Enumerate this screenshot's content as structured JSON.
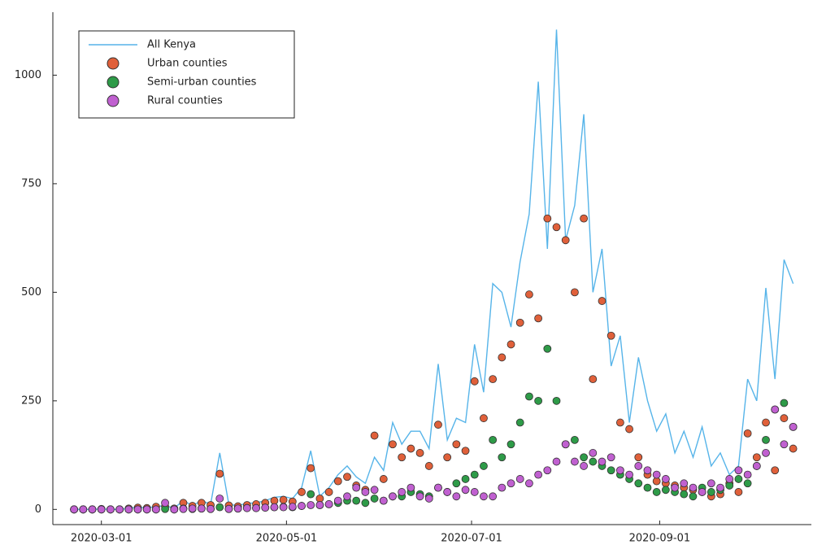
{
  "chart_data": {
    "type": "line-scatter",
    "x": [
      "2020-02-21",
      "2020-02-24",
      "2020-02-27",
      "2020-03-01",
      "2020-03-04",
      "2020-03-07",
      "2020-03-10",
      "2020-03-13",
      "2020-03-16",
      "2020-03-19",
      "2020-03-22",
      "2020-03-25",
      "2020-03-28",
      "2020-03-31",
      "2020-04-03",
      "2020-04-06",
      "2020-04-09",
      "2020-04-12",
      "2020-04-15",
      "2020-04-18",
      "2020-04-21",
      "2020-04-24",
      "2020-04-27",
      "2020-04-30",
      "2020-05-03",
      "2020-05-06",
      "2020-05-09",
      "2020-05-12",
      "2020-05-15",
      "2020-05-18",
      "2020-05-21",
      "2020-05-24",
      "2020-05-27",
      "2020-05-30",
      "2020-06-02",
      "2020-06-05",
      "2020-06-08",
      "2020-06-11",
      "2020-06-14",
      "2020-06-17",
      "2020-06-20",
      "2020-06-23",
      "2020-06-26",
      "2020-06-29",
      "2020-07-02",
      "2020-07-05",
      "2020-07-08",
      "2020-07-11",
      "2020-07-14",
      "2020-07-17",
      "2020-07-20",
      "2020-07-23",
      "2020-07-26",
      "2020-07-29",
      "2020-08-01",
      "2020-08-04",
      "2020-08-07",
      "2020-08-10",
      "2020-08-13",
      "2020-08-16",
      "2020-08-19",
      "2020-08-22",
      "2020-08-25",
      "2020-08-28",
      "2020-08-31",
      "2020-09-03",
      "2020-09-06",
      "2020-09-09",
      "2020-09-12",
      "2020-09-15",
      "2020-09-18",
      "2020-09-21",
      "2020-09-24",
      "2020-09-27",
      "2020-09-30",
      "2020-10-03",
      "2020-10-06",
      "2020-10-09",
      "2020-10-12",
      "2020-10-15"
    ],
    "series": [
      {
        "name": "All Kenya",
        "color": "#56b4e9",
        "mark": "line",
        "values": [
          0,
          0,
          0,
          1,
          0,
          0,
          2,
          5,
          3,
          7,
          8,
          3,
          20,
          9,
          20,
          12,
          130,
          11,
          9,
          14,
          15,
          20,
          28,
          30,
          25,
          50,
          135,
          30,
          50,
          80,
          100,
          75,
          60,
          120,
          90,
          200,
          150,
          180,
          180,
          140,
          335,
          160,
          210,
          200,
          380,
          270,
          520,
          500,
          420,
          570,
          680,
          985,
          600,
          1105,
          620,
          700,
          910,
          500,
          600,
          330,
          400,
          200,
          350,
          250,
          180,
          220,
          130,
          180,
          120,
          190,
          100,
          130,
          80,
          100,
          300,
          250,
          510,
          300,
          575,
          520
        ]
      },
      {
        "name": "Urban counties",
        "color": "#e0603a",
        "mark": "point",
        "values": [
          0,
          0,
          0,
          1,
          0,
          0,
          2,
          4,
          3,
          6,
          7,
          2,
          15,
          8,
          15,
          10,
          82,
          9,
          7,
          10,
          12,
          15,
          20,
          22,
          18,
          40,
          95,
          25,
          40,
          65,
          75,
          55,
          45,
          170,
          70,
          150,
          120,
          140,
          130,
          100,
          195,
          120,
          150,
          135,
          295,
          210,
          300,
          350,
          380,
          430,
          495,
          440,
          670,
          650,
          620,
          500,
          670,
          300,
          480,
          400,
          200,
          185,
          120,
          80,
          65,
          60,
          55,
          50,
          45,
          40,
          30,
          35,
          60,
          40,
          175,
          120,
          200,
          90,
          210,
          140
        ]
      },
      {
        "name": "Semi-urban counties",
        "color": "#2e9b48",
        "mark": "point",
        "values": [
          0,
          0,
          0,
          0,
          0,
          0,
          0,
          0,
          0,
          0,
          1,
          0,
          2,
          1,
          2,
          1,
          5,
          1,
          2,
          3,
          3,
          4,
          5,
          6,
          5,
          8,
          35,
          10,
          12,
          15,
          20,
          20,
          15,
          25,
          20,
          30,
          30,
          40,
          35,
          30,
          50,
          40,
          60,
          70,
          80,
          100,
          160,
          120,
          150,
          200,
          260,
          250,
          370,
          250,
          150,
          160,
          120,
          110,
          100,
          90,
          80,
          70,
          60,
          50,
          40,
          45,
          40,
          35,
          30,
          50,
          40,
          45,
          55,
          70,
          60,
          100,
          160,
          230,
          245,
          190
        ]
      },
      {
        "name": "Rural counties",
        "color": "#c060d0",
        "mark": "point",
        "values": [
          0,
          0,
          0,
          0,
          0,
          0,
          0,
          0,
          0,
          0,
          15,
          0,
          1,
          2,
          2,
          1,
          25,
          1,
          2,
          3,
          3,
          4,
          5,
          5,
          6,
          8,
          10,
          10,
          12,
          20,
          30,
          50,
          40,
          45,
          20,
          30,
          40,
          50,
          30,
          25,
          50,
          40,
          30,
          45,
          40,
          30,
          30,
          50,
          60,
          70,
          60,
          80,
          90,
          110,
          150,
          110,
          100,
          130,
          110,
          120,
          90,
          80,
          100,
          90,
          80,
          70,
          50,
          60,
          50,
          40,
          60,
          50,
          70,
          90,
          80,
          100,
          130,
          230,
          150,
          190
        ]
      }
    ],
    "xlim": [
      "2020-02-14",
      "2020-10-21"
    ],
    "xticks": [
      "2020-03-01",
      "2020-05-01",
      "2020-07-01",
      "2020-09-01"
    ],
    "ylim": [
      -35,
      1145
    ],
    "yticks": [
      0,
      250,
      500,
      750,
      1000
    ],
    "grid": false,
    "legend": "top-left"
  }
}
